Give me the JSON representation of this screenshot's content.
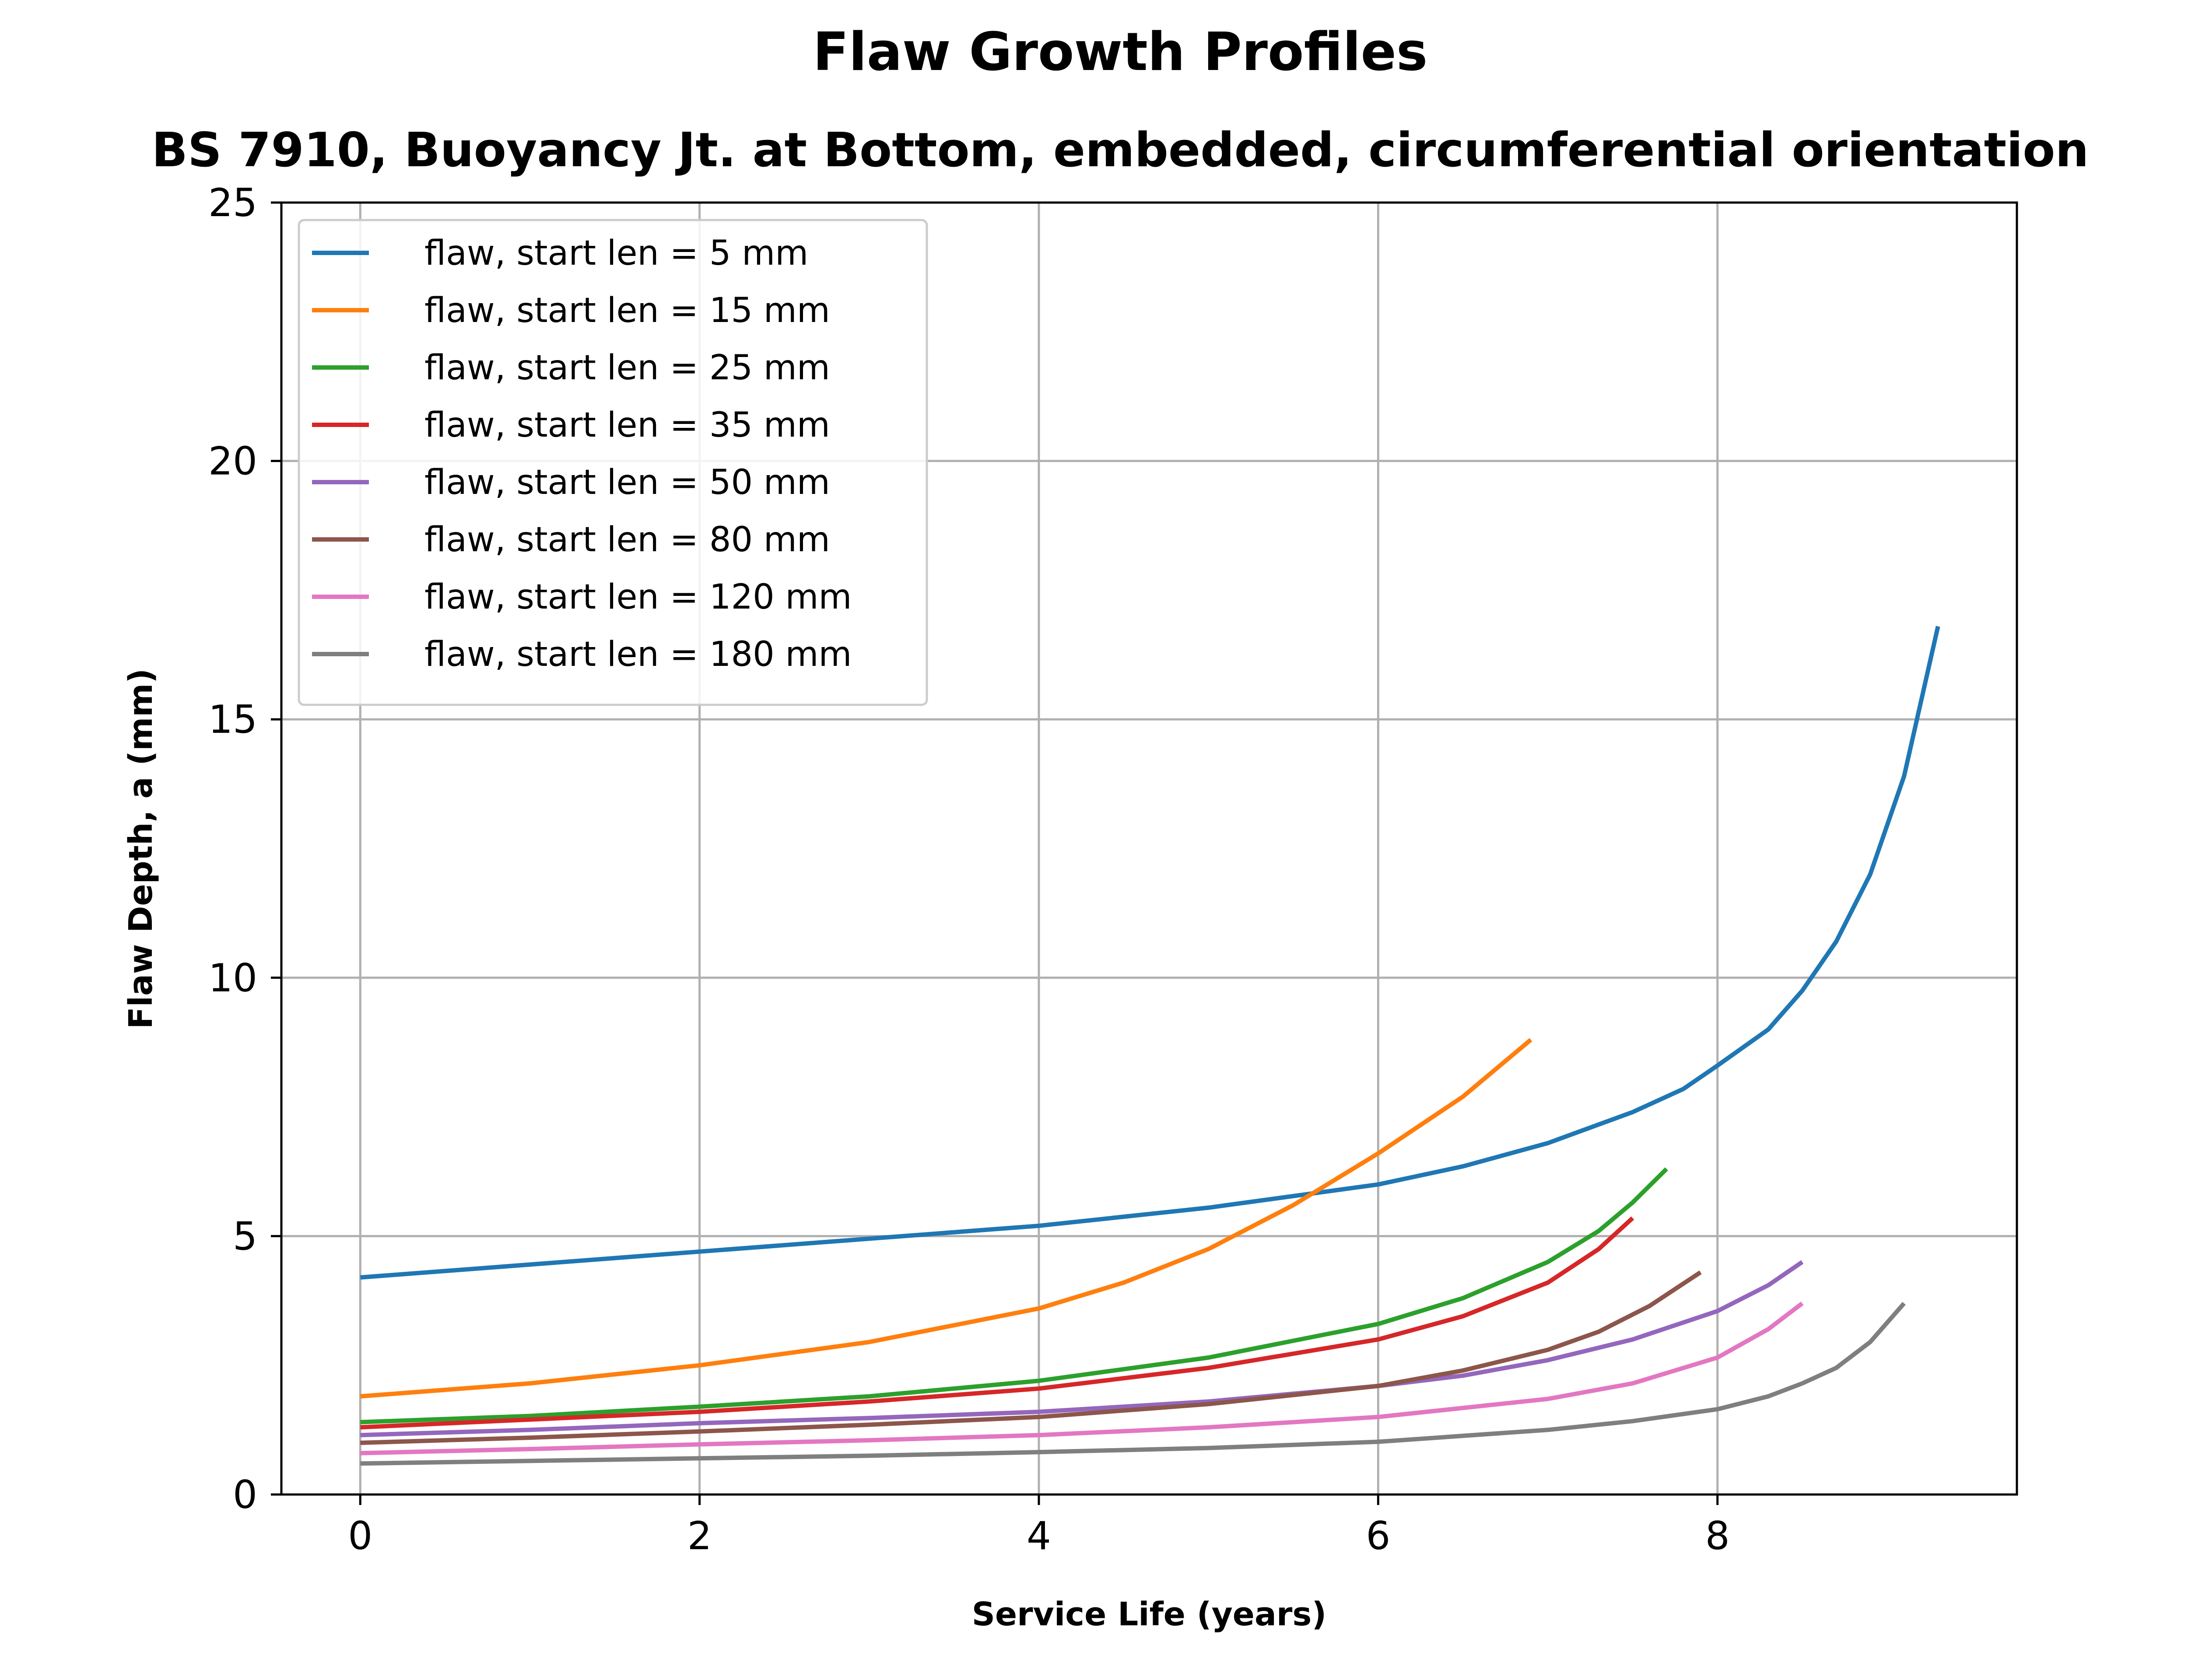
{
  "chart_data": {
    "type": "line",
    "title": "Flaw Growth Profiles",
    "subtitle": "BS 7910, Buoyancy Jt. at Bottom, embedded, circumferential orientation",
    "xlabel": "Service Life (years)",
    "ylabel": "Flaw Depth, a (mm)",
    "xlim": [
      -0.465,
      9.765
    ],
    "ylim": [
      0,
      25
    ],
    "xticks": [
      0,
      2,
      4,
      6,
      8
    ],
    "yticks": [
      0,
      5,
      10,
      15,
      20,
      25
    ],
    "grid": true,
    "legend_position": "top-left",
    "series": [
      {
        "name": "flaw, start len = 5 mm",
        "color": "#1f77b4",
        "x": [
          0,
          1,
          2,
          3,
          4,
          5,
          6,
          6.5,
          7,
          7.5,
          7.8,
          8.0,
          8.3,
          8.5,
          8.7,
          8.9,
          9.1,
          9.3
        ],
        "y": [
          4.2,
          4.45,
          4.7,
          4.95,
          5.2,
          5.55,
          6.0,
          6.35,
          6.8,
          7.4,
          7.85,
          8.3,
          9.0,
          9.75,
          10.7,
          12.0,
          13.9,
          16.8
        ]
      },
      {
        "name": "flaw, start len = 15 mm",
        "color": "#ff7f0e",
        "x": [
          0,
          1,
          2,
          3,
          4,
          4.5,
          5,
          5.5,
          6,
          6.5,
          6.9
        ],
        "y": [
          1.9,
          2.15,
          2.5,
          2.95,
          3.6,
          4.1,
          4.75,
          5.6,
          6.6,
          7.7,
          8.8
        ]
      },
      {
        "name": "flaw, start len = 25 mm",
        "color": "#2ca02c",
        "x": [
          0,
          1,
          2,
          3,
          4,
          5,
          6,
          6.5,
          7,
          7.3,
          7.5,
          7.7
        ],
        "y": [
          1.4,
          1.52,
          1.7,
          1.9,
          2.2,
          2.65,
          3.3,
          3.8,
          4.5,
          5.1,
          5.65,
          6.3
        ]
      },
      {
        "name": "flaw, start len = 35 mm",
        "color": "#d62728",
        "x": [
          0,
          1,
          2,
          3,
          4,
          5,
          6,
          6.5,
          7,
          7.3,
          7.5
        ],
        "y": [
          1.3,
          1.45,
          1.6,
          1.8,
          2.05,
          2.45,
          3.0,
          3.45,
          4.1,
          4.75,
          5.35
        ]
      },
      {
        "name": "flaw, start len = 50 mm",
        "color": "#9467bd",
        "x": [
          0,
          1,
          2,
          3,
          4,
          5,
          6,
          6.5,
          7,
          7.5,
          8,
          8.3,
          8.5
        ],
        "y": [
          1.15,
          1.25,
          1.38,
          1.48,
          1.6,
          1.8,
          2.1,
          2.3,
          2.6,
          3.0,
          3.55,
          4.05,
          4.5
        ]
      },
      {
        "name": "flaw, start len = 80 mm",
        "color": "#8c564b",
        "x": [
          0,
          1,
          2,
          3,
          4,
          5,
          6,
          6.5,
          7,
          7.3,
          7.6,
          7.9
        ],
        "y": [
          1.0,
          1.1,
          1.22,
          1.35,
          1.5,
          1.75,
          2.1,
          2.4,
          2.8,
          3.15,
          3.65,
          4.3
        ]
      },
      {
        "name": "flaw, start len = 120 mm",
        "color": "#e377c2",
        "x": [
          0,
          1,
          2,
          3,
          4,
          5,
          6,
          7,
          7.5,
          8,
          8.3,
          8.5
        ],
        "y": [
          0.8,
          0.88,
          0.97,
          1.05,
          1.15,
          1.3,
          1.5,
          1.85,
          2.15,
          2.65,
          3.2,
          3.7
        ]
      },
      {
        "name": "flaw, start len = 180 mm",
        "color": "#7f7f7f",
        "x": [
          0,
          1,
          2,
          3,
          4,
          5,
          6,
          7,
          7.5,
          8,
          8.3,
          8.5,
          8.7,
          8.9,
          9.1
        ],
        "y": [
          0.6,
          0.65,
          0.7,
          0.75,
          0.82,
          0.9,
          1.02,
          1.25,
          1.42,
          1.65,
          1.9,
          2.15,
          2.45,
          2.95,
          3.7
        ]
      }
    ]
  }
}
